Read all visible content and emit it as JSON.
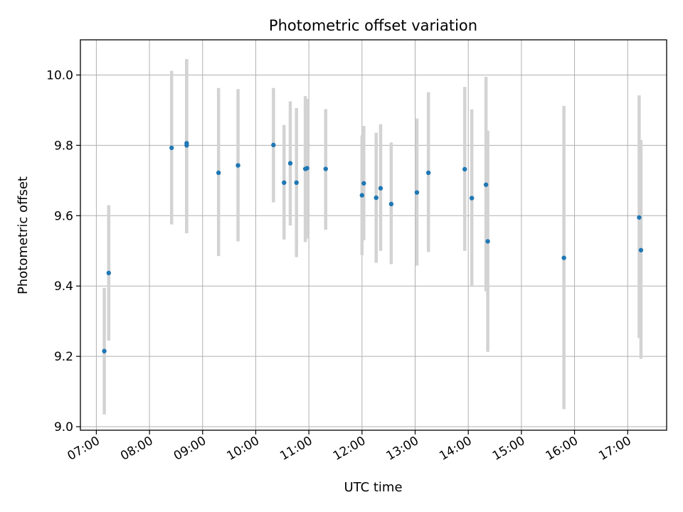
{
  "chart_data": {
    "type": "scatter",
    "title": "Photometric offset variation",
    "xlabel": "UTC time",
    "ylabel": "Photometric offset",
    "x_tick_labels": [
      "07:00",
      "08:00",
      "09:00",
      "10:00",
      "11:00",
      "12:00",
      "13:00",
      "14:00",
      "15:00",
      "16:00",
      "17:00"
    ],
    "y_tick_labels": [
      "9.0",
      "9.2",
      "9.4",
      "9.6",
      "9.8",
      "10.0"
    ],
    "xlim": [
      "06:42",
      "17:44"
    ],
    "ylim": [
      8.99,
      10.1
    ],
    "grid": true,
    "point_color": "#1f77b4",
    "errorbar_color": "#d3d3d3",
    "points": [
      {
        "time": "07:09",
        "y": 9.215,
        "lo": 9.035,
        "hi": 9.395
      },
      {
        "time": "07:14",
        "y": 9.437,
        "lo": 9.245,
        "hi": 9.63
      },
      {
        "time": "08:25",
        "y": 9.793,
        "lo": 9.575,
        "hi": 10.012
      },
      {
        "time": "08:42",
        "y": 9.806,
        "lo": 9.55,
        "hi": 10.045
      },
      {
        "time": "08:42",
        "y": 9.8,
        "lo": 9.55,
        "hi": 10.045
      },
      {
        "time": "09:18",
        "y": 9.722,
        "lo": 9.485,
        "hi": 9.963
      },
      {
        "time": "09:40",
        "y": 9.743,
        "lo": 9.527,
        "hi": 9.96
      },
      {
        "time": "10:20",
        "y": 9.801,
        "lo": 9.638,
        "hi": 9.963
      },
      {
        "time": "10:32",
        "y": 9.694,
        "lo": 9.532,
        "hi": 9.858
      },
      {
        "time": "10:39",
        "y": 9.749,
        "lo": 9.572,
        "hi": 9.925
      },
      {
        "time": "10:46",
        "y": 9.694,
        "lo": 9.482,
        "hi": 9.906
      },
      {
        "time": "10:56",
        "y": 9.733,
        "lo": 9.525,
        "hi": 9.94
      },
      {
        "time": "10:58",
        "y": 9.735,
        "lo": 9.535,
        "hi": 9.932
      },
      {
        "time": "11:19",
        "y": 9.733,
        "lo": 9.56,
        "hi": 9.903
      },
      {
        "time": "12:00",
        "y": 9.658,
        "lo": 9.488,
        "hi": 9.828
      },
      {
        "time": "12:02",
        "y": 9.692,
        "lo": 9.53,
        "hi": 9.855
      },
      {
        "time": "12:16",
        "y": 9.651,
        "lo": 9.466,
        "hi": 9.836
      },
      {
        "time": "12:21",
        "y": 9.678,
        "lo": 9.5,
        "hi": 9.86
      },
      {
        "time": "12:33",
        "y": 9.633,
        "lo": 9.462,
        "hi": 9.808
      },
      {
        "time": "13:02",
        "y": 9.666,
        "lo": 9.458,
        "hi": 9.876
      },
      {
        "time": "13:15",
        "y": 9.722,
        "lo": 9.497,
        "hi": 9.951
      },
      {
        "time": "13:56",
        "y": 9.732,
        "lo": 9.5,
        "hi": 9.966
      },
      {
        "time": "14:04",
        "y": 9.65,
        "lo": 9.398,
        "hi": 9.902
      },
      {
        "time": "14:20",
        "y": 9.688,
        "lo": 9.385,
        "hi": 9.995
      },
      {
        "time": "14:22",
        "y": 9.527,
        "lo": 9.213,
        "hi": 9.842
      },
      {
        "time": "15:48",
        "y": 9.48,
        "lo": 9.05,
        "hi": 9.912
      },
      {
        "time": "17:13",
        "y": 9.595,
        "lo": 9.252,
        "hi": 9.942
      },
      {
        "time": "17:15",
        "y": 9.502,
        "lo": 9.193,
        "hi": 9.815
      }
    ]
  }
}
